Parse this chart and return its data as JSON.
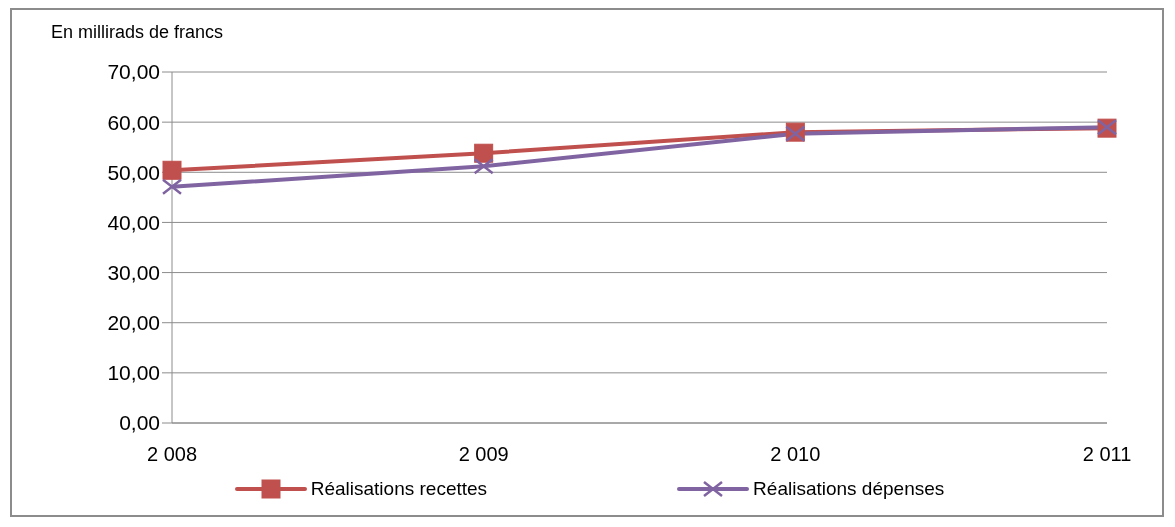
{
  "chart_data": {
    "type": "line",
    "ylabel": "En millirads de francs",
    "categories": [
      "2 008",
      "2 009",
      "2 010",
      "2 011"
    ],
    "series": [
      {
        "name": "Réalisations recettes",
        "color": "#c0504d",
        "marker": "square",
        "values": [
          50.4,
          53.8,
          58.0,
          58.8
        ]
      },
      {
        "name": "Réalisations dépenses",
        "color": "#8064a2",
        "marker": "cross",
        "values": [
          47.1,
          51.2,
          57.7,
          59.0
        ]
      }
    ],
    "ylim": [
      0,
      70
    ],
    "yticks": [
      {
        "value": 0,
        "label": "0,00"
      },
      {
        "value": 10,
        "label": "10,00"
      },
      {
        "value": 20,
        "label": "20,00"
      },
      {
        "value": 30,
        "label": "30,00"
      },
      {
        "value": 40,
        "label": "40,00"
      },
      {
        "value": 50,
        "label": "50,00"
      },
      {
        "value": 60,
        "label": "60,00"
      },
      {
        "value": 70,
        "label": "70,00"
      }
    ],
    "grid": "y",
    "legend": "bottom",
    "line_style": "solid"
  }
}
